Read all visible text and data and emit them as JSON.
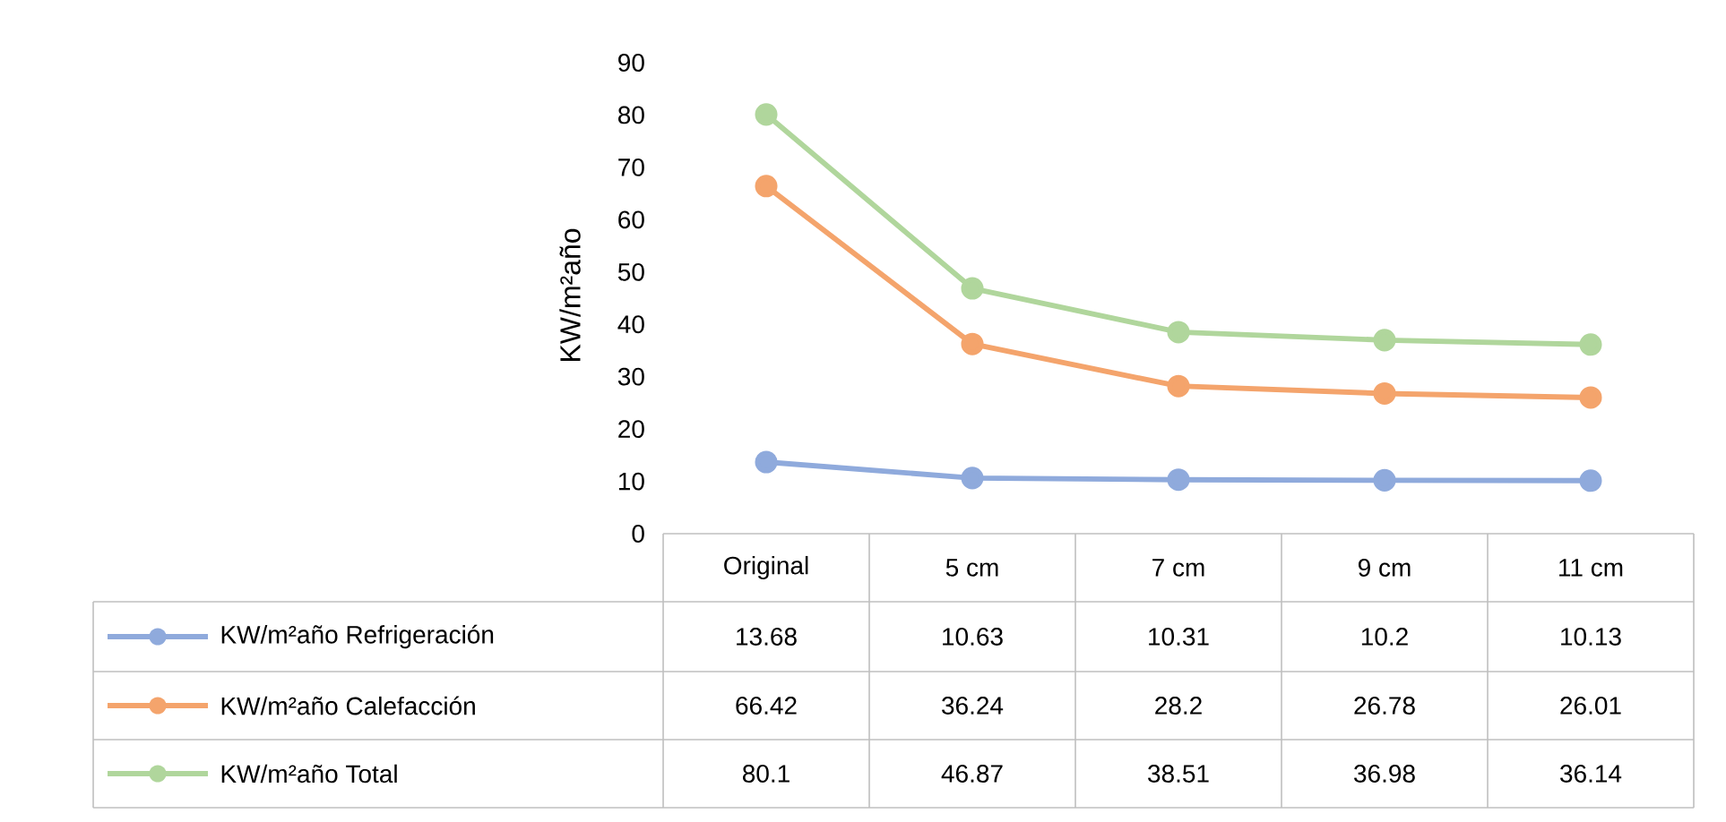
{
  "chart_data": {
    "type": "line",
    "ylabel": "KW/m²año",
    "categories": [
      "Original",
      "5 cm",
      "7 cm",
      "9 cm",
      "11 cm"
    ],
    "series": [
      {
        "name": "KW/m²año Refrigeración",
        "color": "#8faadc",
        "values": [
          13.68,
          10.63,
          10.31,
          10.2,
          10.13
        ]
      },
      {
        "name": "KW/m²año Calefacción",
        "color": "#f4a46c",
        "values": [
          66.42,
          36.24,
          28.2,
          26.78,
          26.01
        ]
      },
      {
        "name": "KW/m²año Total",
        "color": "#b0d69c",
        "values": [
          80.1,
          46.87,
          38.51,
          36.98,
          36.14
        ]
      }
    ],
    "ylim": [
      0,
      90
    ],
    "yticks": [
      0,
      10,
      20,
      30,
      40,
      50,
      60,
      70,
      80,
      90
    ],
    "grid": false,
    "legend": "bottom",
    "data_labels": true,
    "marker": "circle",
    "line_style": "solid"
  }
}
